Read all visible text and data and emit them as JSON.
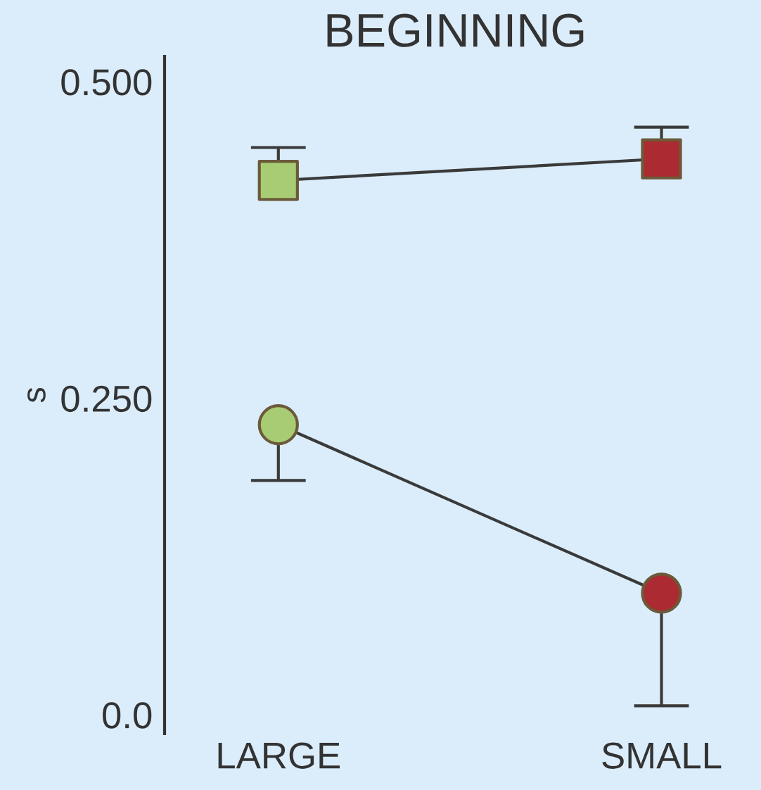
{
  "chart_data": {
    "type": "line",
    "title": "BEGINNING",
    "ylabel": "s",
    "categories": [
      "LARGE",
      "SMALL"
    ],
    "series": [
      {
        "values": [
          0.422,
          0.439
        ],
        "colors": [
          "#a8cc74",
          "#ac2a31"
        ],
        "marker": "square",
        "errors": [
          [
            0.422,
            0.448
          ],
          [
            0.439,
            0.464
          ]
        ]
      },
      {
        "values": [
          0.229,
          0.096
        ],
        "colors": [
          "#a8cc74",
          "#ac2a31"
        ],
        "marker": "circle",
        "errors": [
          [
            0.185,
            0.229
          ],
          [
            0.007,
            0.096
          ]
        ]
      }
    ],
    "ylim": [
      -0.015,
      0.52
    ],
    "yticks": [
      {
        "value": 0,
        "label": "0.0"
      },
      {
        "value": 0.25,
        "label": "0.250"
      },
      {
        "value": 0.5,
        "label": "0.500"
      }
    ],
    "grid": false,
    "legend": false
  }
}
